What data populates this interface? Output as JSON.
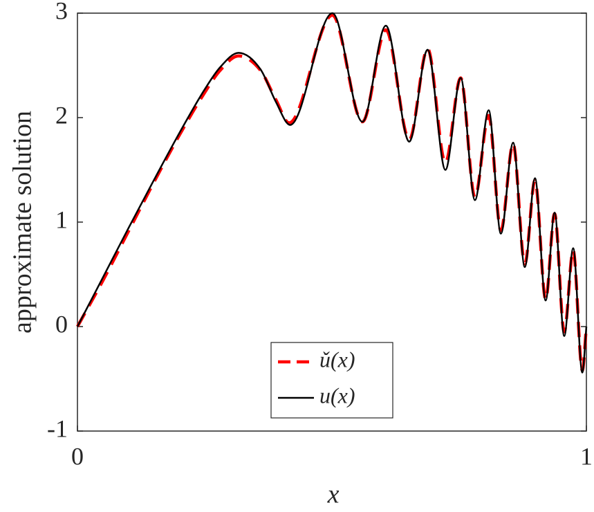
{
  "chart_data": {
    "type": "line",
    "xlabel": "x",
    "ylabel": "approximate solution",
    "xlim": [
      0,
      1
    ],
    "ylim": [
      -1,
      3
    ],
    "xticks": [
      0,
      1
    ],
    "yticks": [
      -1,
      0,
      1,
      2,
      3
    ],
    "legend": "bottom-center",
    "series": [
      {
        "name": "ǔ(x)",
        "color": "#ff0000",
        "dash": true,
        "x": [
          0,
          0.05,
          0.1,
          0.15,
          0.2,
          0.25,
          0.28,
          0.3166,
          0.36,
          0.39,
          0.416,
          0.501,
          0.56,
          0.606,
          0.652,
          0.688,
          0.723,
          0.753,
          0.781,
          0.808,
          0.832,
          0.856,
          0.879,
          0.899,
          0.92,
          0.9375,
          0.9565,
          0.974,
          0.992,
          1.0
        ],
        "values": [
          0,
          0.44,
          0.91,
          1.38,
          1.83,
          2.24,
          2.45,
          2.59,
          2.45,
          2.17,
          1.95,
          2.98,
          1.96,
          2.84,
          1.79,
          2.66,
          1.57,
          2.38,
          1.24,
          2.02,
          0.92,
          1.75,
          0.6,
          1.4,
          0.26,
          1.08,
          -0.05,
          0.73,
          -0.42,
          0.0
        ]
      },
      {
        "name": "u(x)",
        "color": "#000000",
        "dash": false,
        "x": [
          0,
          0.05,
          0.1,
          0.15,
          0.2,
          0.25,
          0.28,
          0.3166,
          0.36,
          0.39,
          0.418,
          0.501,
          0.56,
          0.606,
          0.652,
          0.688,
          0.723,
          0.753,
          0.781,
          0.808,
          0.832,
          0.856,
          0.879,
          0.899,
          0.92,
          0.9375,
          0.9565,
          0.974,
          0.992,
          1.0
        ],
        "values": [
          0,
          0.47,
          0.94,
          1.4,
          1.85,
          2.27,
          2.48,
          2.62,
          2.46,
          2.15,
          1.93,
          3.0,
          1.96,
          2.88,
          1.77,
          2.65,
          1.5,
          2.38,
          1.21,
          2.07,
          0.89,
          1.76,
          0.57,
          1.42,
          0.25,
          1.09,
          -0.09,
          0.75,
          -0.44,
          0.0
        ]
      }
    ]
  }
}
